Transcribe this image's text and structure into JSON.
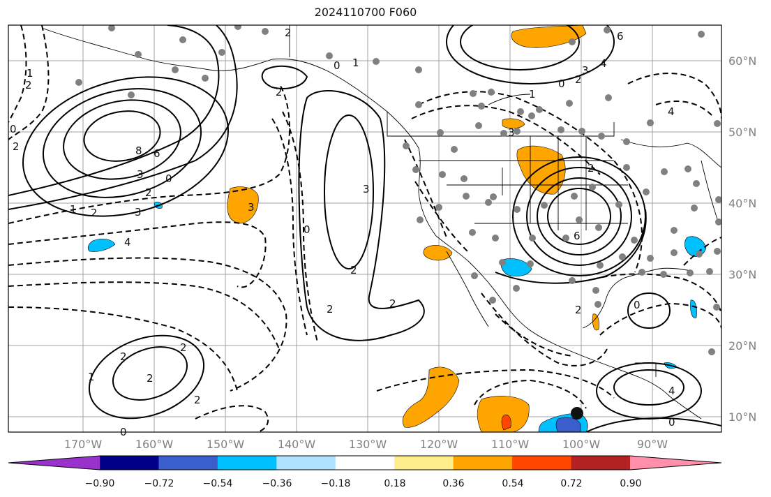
{
  "title": "2024110700 F060",
  "map": {
    "lat_labels": [
      "60°N",
      "50°N",
      "40°N",
      "30°N",
      "20°N",
      "10°N"
    ],
    "lon_labels": [
      "170°W",
      "160°W",
      "150°W",
      "140°W",
      "130°W",
      "120°W",
      "110°W",
      "100°W",
      "90°W"
    ],
    "contour_labels": [
      "2",
      "2",
      "1",
      "0",
      "6",
      "4",
      "3",
      "2",
      "2",
      "1",
      "0",
      "4",
      "2",
      "0",
      "1",
      "8",
      "6",
      "3",
      "2",
      "0",
      "1",
      "2",
      "3",
      "0",
      "3",
      "3",
      "4",
      "2",
      "2",
      "2",
      "2",
      "6",
      "3",
      "0",
      "2",
      "1",
      "2",
      "2",
      "0",
      "2",
      "2",
      "0",
      "4"
    ],
    "grid": true,
    "colors": {
      "contour": "#000000",
      "grid": "#a0a0a0",
      "coast": "#000000",
      "station": "#808080"
    }
  },
  "colorbar": {
    "colors": [
      "#9932cc",
      "#00008b",
      "#3a5fcd",
      "#00bfff",
      "#b0e2ff",
      "#ffffff",
      "#ffec8b",
      "#ffa500",
      "#ff4500",
      "#b22222",
      "#ff8fab"
    ],
    "tick_labels": [
      "−0.90",
      "−0.72",
      "−0.54",
      "−0.36",
      "−0.18",
      "0.18",
      "0.36",
      "0.54",
      "0.72",
      "0.90"
    ]
  }
}
